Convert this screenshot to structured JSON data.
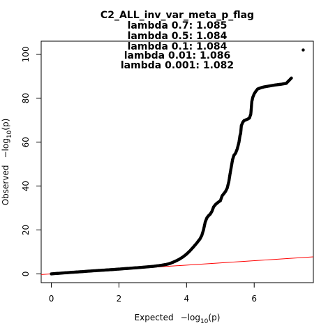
{
  "chart_data": {
    "type": "scatter",
    "title": "C2_ALL_inv_var_meta_p_flag",
    "subtitle_lines": [
      "lambda 0.7: 1.085",
      "lambda 0.5: 1.084",
      "lambda 0.1: 1.084",
      "lambda 0.01: 1.086",
      "lambda 0.001: 1.082"
    ],
    "xlabel_prefix": "Expected",
    "xlabel_math": "−log",
    "xlabel_sub": "10",
    "xlabel_suffix": "(p)",
    "ylabel_prefix": "Observed",
    "ylabel_math": "−log",
    "ylabel_sub": "10",
    "ylabel_suffix": "(p)",
    "xlim": [
      -0.3,
      7.75
    ],
    "ylim": [
      -4,
      106
    ],
    "x_ticks": [
      0,
      2,
      4,
      6
    ],
    "y_ticks": [
      0,
      20,
      40,
      60,
      80,
      100
    ],
    "reference_line": {
      "slope": 1,
      "intercept": 0,
      "color": "#ff0000"
    },
    "point_color": "#000000",
    "series": [
      {
        "values_xy": [
          [
            0.0,
            0.0
          ],
          [
            0.3,
            0.35
          ],
          [
            0.6,
            0.7
          ],
          [
            0.9,
            1.0
          ],
          [
            1.2,
            1.35
          ],
          [
            1.5,
            1.65
          ],
          [
            1.8,
            1.95
          ],
          [
            2.1,
            2.3
          ],
          [
            2.4,
            2.65
          ],
          [
            2.7,
            3.0
          ],
          [
            3.0,
            3.4
          ],
          [
            3.2,
            3.8
          ],
          [
            3.4,
            4.3
          ],
          [
            3.5,
            4.7
          ],
          [
            3.6,
            5.3
          ],
          [
            3.7,
            6.0
          ],
          [
            3.8,
            6.8
          ],
          [
            3.9,
            7.8
          ],
          [
            4.0,
            9.0
          ],
          [
            4.1,
            10.5
          ],
          [
            4.2,
            12.2
          ],
          [
            4.3,
            14.0
          ],
          [
            4.4,
            16.0
          ],
          [
            4.45,
            17.5
          ],
          [
            4.5,
            20.0
          ],
          [
            4.55,
            23.5
          ],
          [
            4.6,
            25.5
          ],
          [
            4.65,
            26.5
          ],
          [
            4.7,
            27.2
          ],
          [
            4.75,
            28.5
          ],
          [
            4.8,
            30.5
          ],
          [
            4.85,
            31.5
          ],
          [
            4.9,
            32.2
          ],
          [
            4.95,
            32.8
          ],
          [
            5.0,
            33.3
          ],
          [
            5.05,
            35.5
          ],
          [
            5.1,
            36.5
          ],
          [
            5.15,
            37.5
          ],
          [
            5.2,
            39.0
          ],
          [
            5.25,
            42.0
          ],
          [
            5.28,
            45.0
          ],
          [
            5.32,
            48.5
          ],
          [
            5.36,
            52.0
          ],
          [
            5.4,
            54.0
          ],
          [
            5.45,
            55.0
          ],
          [
            5.5,
            57.0
          ],
          [
            5.55,
            60.0
          ],
          [
            5.58,
            63.0
          ],
          [
            5.6,
            64.0
          ],
          [
            5.62,
            67.5
          ],
          [
            5.66,
            69.0
          ],
          [
            5.7,
            69.8
          ],
          [
            5.76,
            70.2
          ],
          [
            5.82,
            70.6
          ],
          [
            5.86,
            71.0
          ],
          [
            5.9,
            72.8
          ],
          [
            5.93,
            78.5
          ],
          [
            5.96,
            80.5
          ],
          [
            6.0,
            82.0
          ],
          [
            6.05,
            83.2
          ],
          [
            6.1,
            84.2
          ],
          [
            6.2,
            84.8
          ],
          [
            6.3,
            85.2
          ],
          [
            6.45,
            85.6
          ],
          [
            6.6,
            86.0
          ],
          [
            6.8,
            86.4
          ],
          [
            6.95,
            86.8
          ],
          [
            7.1,
            89.2
          ],
          [
            7.45,
            102.0
          ]
        ]
      }
    ]
  }
}
